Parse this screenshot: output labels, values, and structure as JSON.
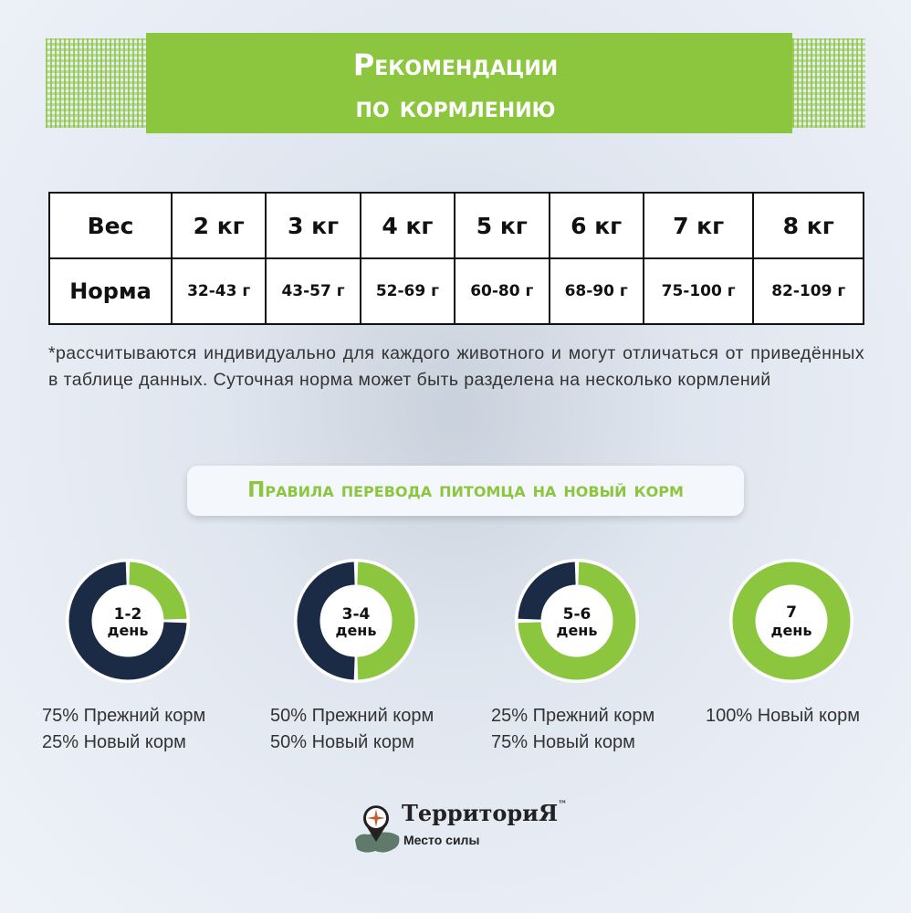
{
  "header": {
    "title_line1": "Рекомендации",
    "title_line2": "по кормлению"
  },
  "table": {
    "row_labels": [
      "Вес",
      "Норма"
    ],
    "weights": [
      "2 кг",
      "3 кг",
      "4 кг",
      "5 кг",
      "6 кг",
      "7 кг",
      "8 кг"
    ],
    "norms": [
      "32-43 г",
      "43-57 г",
      "52-69 г",
      "60-80 г",
      "68-90 г",
      "75-100 г",
      "82-109 г"
    ]
  },
  "note": "*рассчитываются индивидуально для каждого животного и могут отличаться от приведённых в таблице данных. Суточная норма может быть разделена на несколько кормлений",
  "subtitle": "Правила перевода питомца на новый корм",
  "colors": {
    "green": "#8cc63f",
    "dark": "#1c2b45"
  },
  "steps": [
    {
      "day_num": "1-2",
      "day_word": "день",
      "new_percent": 25,
      "line1": "75% Прежний корм",
      "line2": "25% Новый корм"
    },
    {
      "day_num": "3-4",
      "day_word": "день",
      "new_percent": 50,
      "line1": "50% Прежний корм",
      "line2": "50% Новый корм"
    },
    {
      "day_num": "5-6",
      "day_word": "день",
      "new_percent": 75,
      "line1": "25% Прежний корм",
      "line2": "75% Новый корм"
    },
    {
      "day_num": "7",
      "day_word": "день",
      "new_percent": 100,
      "line1": "100% Новый корм",
      "line2": ""
    }
  ],
  "logo": {
    "name": "ТерриториЯ",
    "tm": "™",
    "tagline": "Место силы",
    "icon": "compass-map-pin-icon"
  }
}
